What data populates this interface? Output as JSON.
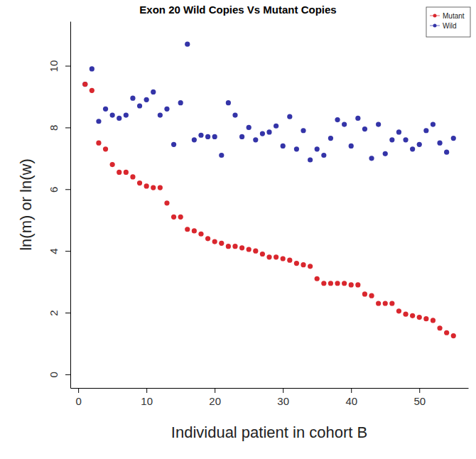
{
  "chart_data": {
    "type": "scatter",
    "title": "Exon 20 Wild Copies Vs Mutant Copies",
    "x_label": "Individual patient in cohort B",
    "y_label": "ln(m) or ln(w)",
    "x": [
      1,
      2,
      3,
      4,
      5,
      6,
      7,
      8,
      9,
      10,
      11,
      12,
      13,
      14,
      15,
      16,
      17,
      18,
      19,
      20,
      21,
      22,
      23,
      24,
      25,
      26,
      27,
      28,
      29,
      30,
      31,
      32,
      33,
      34,
      35,
      36,
      37,
      38,
      39,
      40,
      41,
      42,
      43,
      44,
      45,
      46,
      47,
      48,
      49,
      50,
      51,
      52,
      53,
      54,
      55
    ],
    "series": [
      {
        "name": "Mutant",
        "color": "#d9272e",
        "marker": "circle",
        "values": [
          9.4,
          9.2,
          7.5,
          7.3,
          6.8,
          6.55,
          6.55,
          6.4,
          6.2,
          6.1,
          6.05,
          6.05,
          5.55,
          5.1,
          5.1,
          4.7,
          4.65,
          4.55,
          4.4,
          4.3,
          4.25,
          4.15,
          4.15,
          4.1,
          4.05,
          4.0,
          3.9,
          3.8,
          3.8,
          3.75,
          3.7,
          3.6,
          3.55,
          3.5,
          3.1,
          2.95,
          2.95,
          2.95,
          2.95,
          2.9,
          2.9,
          2.6,
          2.55,
          2.3,
          2.3,
          2.3,
          2.05,
          1.95,
          1.9,
          1.85,
          1.8,
          1.75,
          1.5,
          1.35,
          1.25
        ]
      },
      {
        "name": "Wild",
        "color": "#3434a8",
        "marker": "circle",
        "values": [
          9.4,
          9.9,
          8.2,
          8.6,
          8.4,
          8.3,
          8.4,
          8.95,
          8.7,
          8.9,
          9.15,
          8.4,
          8.6,
          7.45,
          8.8,
          10.7,
          7.6,
          7.75,
          7.7,
          7.7,
          7.1,
          8.8,
          8.4,
          7.7,
          8.0,
          7.6,
          7.8,
          7.85,
          8.05,
          7.4,
          8.35,
          7.3,
          7.9,
          6.95,
          7.3,
          7.1,
          7.65,
          8.25,
          8.1,
          7.4,
          8.3,
          7.95,
          7.0,
          8.1,
          7.15,
          7.6,
          7.85,
          7.6,
          7.3,
          7.45,
          7.9,
          8.1,
          7.5,
          7.2,
          7.65
        ]
      }
    ],
    "xlim": [
      -1.16,
      57.16
    ],
    "xticks": [
      0,
      10,
      20,
      30,
      40,
      50
    ],
    "ylim": [
      -0.44,
      11.44
    ],
    "yticks": [
      0,
      2,
      4,
      6,
      8,
      10
    ],
    "legend": "top-right",
    "grid": false
  }
}
